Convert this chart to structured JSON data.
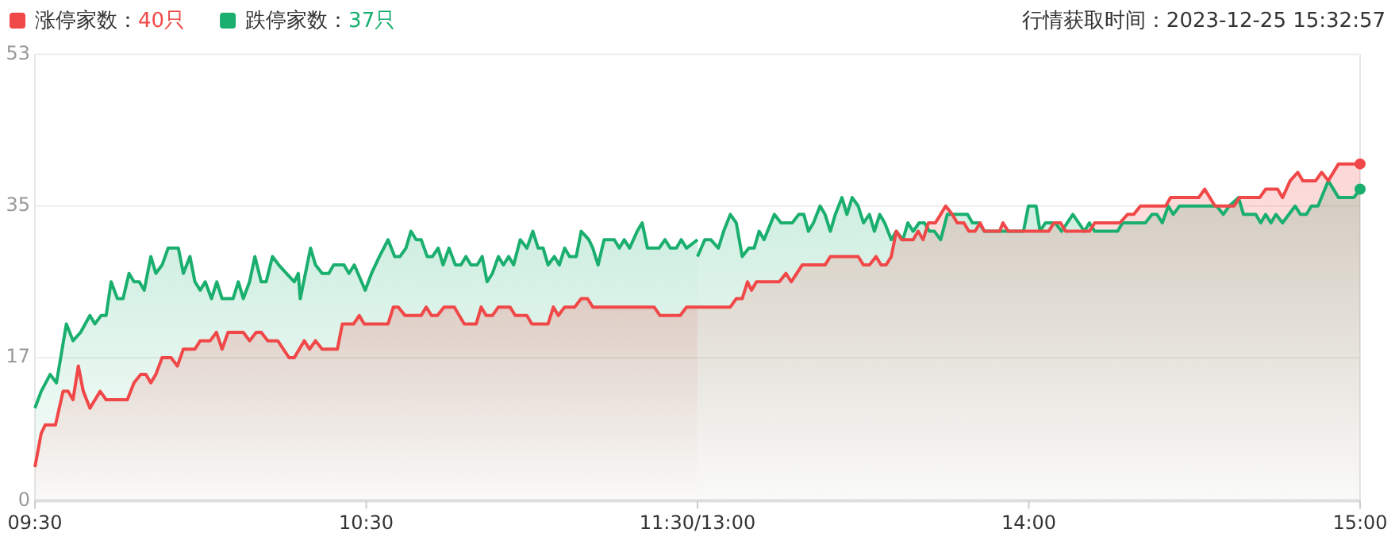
{
  "chart_data": [
    {
      "type": "area",
      "annotations": [
        "行情获取时间：2023-12-25 15:32:57",
        "40只",
        "37只"
      ],
      "xlim": [
        9.5,
        11.5
      ],
      "xticks": [
        {
          "value": 9.5,
          "label": "09:30"
        },
        {
          "value": 10.5,
          "label": "10:30"
        }
      ],
      "ylim": [
        0,
        53
      ],
      "yticks": [
        0,
        17,
        35,
        53
      ],
      "grid": "y",
      "legend": "top left",
      "series": [
        {
          "name": "涨停家数：",
          "color": "#f04848",
          "x": [
            9.5,
            9.519,
            9.531,
            9.562,
            9.585,
            9.6,
            9.615,
            9.631,
            9.646,
            9.666,
            9.697,
            9.715,
            9.779,
            9.799,
            9.819,
            9.835,
            9.85,
            9.865,
            9.884,
            9.911,
            9.93,
            9.948,
            9.983,
            9.999,
            10.029,
            10.048,
            10.065,
            10.083,
            10.129,
            10.148,
            10.168,
            10.183,
            10.203,
            10.233,
            10.267,
            10.283,
            10.313,
            10.329,
            10.347,
            10.367,
            10.413,
            10.428,
            10.462,
            10.479,
            10.494,
            10.566,
            10.582,
            10.597,
            10.617,
            10.666,
            10.681,
            10.697,
            10.715,
            10.735,
            10.766,
            10.796,
            10.832,
            10.847,
            10.862,
            10.881,
            10.899,
            10.934,
            10.95,
            10.985,
            11,
            11.049,
            11.065,
            11.08,
            11.099,
            11.129,
            11.149,
            11.168,
            11.184,
            11.369,
            11.387,
            11.448,
            11.467,
            11.5
          ],
          "values": [
            4,
            8,
            9,
            9,
            13,
            13,
            12,
            16,
            13,
            11,
            13,
            12,
            12,
            14,
            15,
            15,
            14,
            15,
            17,
            17,
            16,
            18,
            18,
            19,
            19,
            20,
            18,
            20,
            20,
            19,
            20,
            20,
            19,
            19,
            17,
            17,
            19,
            18,
            19,
            18,
            18,
            21,
            21,
            22,
            21,
            21,
            23,
            23,
            22,
            22,
            23,
            22,
            22,
            23,
            23,
            21,
            21,
            23,
            22,
            22,
            23,
            23,
            22,
            22,
            21,
            21,
            23,
            22,
            23,
            23,
            24,
            24,
            23,
            23,
            22,
            22,
            23,
            23
          ]
        },
        {
          "name": "跌停家数：",
          "color": "#1aaf6e",
          "x": [
            9.5,
            9.519,
            9.546,
            9.565,
            9.595,
            9.615,
            9.638,
            9.666,
            9.681,
            9.7,
            9.715,
            9.73,
            9.749,
            9.766,
            9.784,
            9.799,
            9.815,
            9.83,
            9.85,
            9.865,
            9.884,
            9.902,
            9.933,
            9.948,
            9.968,
            9.983,
            9.999,
            10.014,
            10.033,
            10.049,
            10.065,
            10.098,
            10.114,
            10.129,
            10.148,
            10.164,
            10.183,
            10.198,
            10.217,
            10.236,
            10.259,
            10.283,
            10.295,
            10.301,
            10.332,
            10.347,
            10.367,
            10.387,
            10.402,
            10.433,
            10.448,
            10.464,
            10.497,
            10.516,
            10.54,
            10.566,
            10.586,
            10.602,
            10.62,
            10.635,
            10.651,
            10.666,
            10.684,
            10.7,
            10.717,
            10.732,
            10.75,
            10.769,
            10.786,
            10.801,
            10.816,
            10.835,
            10.85,
            10.865,
            10.881,
            10.899,
            10.914,
            10.93,
            10.945,
            10.965,
            10.985,
            11.003,
            11.019,
            11.034,
            11.049,
            11.068,
            11.083,
            11.099,
            11.114,
            11.134,
            11.149,
            11.172,
            11.184,
            11.2,
            11.218,
            11.249,
            11.264,
            11.279,
            11.295,
            11.318,
            11.333,
            11.349,
            11.384,
            11.402,
            11.418,
            11.436,
            11.451,
            11.467,
            11.5
          ],
          "values": [
            11,
            13,
            15,
            14,
            21,
            19,
            20,
            22,
            21,
            22,
            22,
            26,
            24,
            24,
            27,
            26,
            26,
            25,
            29,
            27,
            28,
            30,
            30,
            27,
            29,
            26,
            25,
            26,
            24,
            26,
            24,
            24,
            26,
            24,
            26,
            29,
            26,
            26,
            29,
            28,
            27,
            26,
            27,
            24,
            30,
            28,
            27,
            27,
            28,
            28,
            27,
            28,
            25,
            27,
            29,
            31,
            29,
            29,
            30,
            32,
            31,
            31,
            29,
            29,
            30,
            28,
            30,
            28,
            28,
            29,
            28,
            28,
            29,
            26,
            27,
            29,
            28,
            29,
            28,
            31,
            30,
            32,
            30,
            30,
            28,
            29,
            28,
            30,
            29,
            29,
            32,
            31,
            30,
            28,
            31,
            31,
            30,
            31,
            30,
            32,
            33,
            30,
            30,
            31,
            30,
            30,
            31,
            30,
            31
          ]
        }
      ]
    },
    {
      "type": "area",
      "xlim": [
        13,
        15
      ],
      "xticks": [
        {
          "value": 13,
          "label": "11:30/13:00"
        },
        {
          "value": 14,
          "label": "14:00"
        },
        {
          "value": 15,
          "label": "15:00"
        }
      ],
      "ylim": [
        0,
        53
      ],
      "yticks": [
        0,
        17,
        35,
        53
      ],
      "grid": "y",
      "tick_labels": "x",
      "series": [
        {
          "color": "#f04848",
          "x": [
            13,
            13.099,
            13.117,
            13.135,
            13.151,
            13.163,
            13.178,
            13.247,
            13.267,
            13.283,
            13.316,
            13.385,
            13.401,
            13.485,
            13.501,
            13.519,
            13.539,
            13.554,
            13.569,
            13.585,
            13.6,
            13.616,
            13.651,
            13.666,
            13.681,
            13.697,
            13.718,
            13.734,
            13.749,
            13.769,
            13.784,
            13.804,
            13.819,
            13.838,
            13.853,
            13.866,
            13.912,
            13.922,
            13.938,
            14.06,
            14.076,
            14.096,
            14.111,
            14.183,
            14.199,
            14.275,
            14.298,
            14.317,
            14.337,
            14.413,
            14.428,
            14.513,
            14.531,
            14.562,
            14.62,
            14.636,
            14.697,
            14.715,
            14.751,
            14.766,
            14.789,
            14.812,
            14.827,
            14.866,
            14.884,
            14.904,
            14.935,
            15
          ],
          "values": [
            23,
            23,
            24,
            24,
            26,
            25,
            26,
            26,
            27,
            26,
            28,
            28,
            29,
            29,
            28,
            28,
            29,
            28,
            28,
            29,
            32,
            31,
            31,
            32,
            31,
            33,
            33,
            34,
            35,
            34,
            33,
            33,
            32,
            32,
            33,
            32,
            32,
            33,
            32,
            32,
            33,
            33,
            32,
            32,
            33,
            33,
            34,
            34,
            35,
            35,
            36,
            36,
            37,
            35,
            35,
            36,
            36,
            37,
            37,
            36,
            38,
            39,
            38,
            38,
            39,
            38,
            40,
            40
          ]
        },
        {
          "color": "#1aaf6e",
          "x": [
            13,
            13.022,
            13.04,
            13.063,
            13.079,
            13.099,
            13.117,
            13.135,
            13.155,
            13.171,
            13.186,
            13.201,
            13.232,
            13.252,
            13.286,
            13.306,
            13.321,
            13.335,
            13.35,
            13.37,
            13.385,
            13.401,
            13.416,
            13.436,
            13.451,
            13.467,
            13.485,
            13.501,
            13.519,
            13.534,
            13.55,
            13.565,
            13.585,
            13.6,
            13.62,
            13.635,
            13.651,
            13.669,
            13.685,
            13.7,
            13.715,
            13.734,
            13.754,
            13.815,
            13.83,
            13.85,
            13.866,
            13.984,
            13.999,
            14.022,
            14.034,
            14.05,
            14.08,
            14.099,
            14.133,
            14.168,
            14.183,
            14.199,
            14.268,
            14.283,
            14.352,
            14.372,
            14.387,
            14.403,
            14.421,
            14.436,
            14.455,
            14.567,
            14.587,
            14.605,
            14.633,
            14.648,
            14.685,
            14.7,
            14.715,
            14.731,
            14.746,
            14.766,
            14.804,
            14.82,
            14.838,
            14.853,
            14.873,
            14.904,
            14.935,
            14.981,
            15
          ],
          "values": [
            29,
            31,
            31,
            30,
            32,
            34,
            33,
            29,
            30,
            30,
            32,
            31,
            34,
            33,
            33,
            34,
            34,
            32,
            33,
            35,
            34,
            32,
            34,
            36,
            34,
            36,
            35,
            33,
            34,
            32,
            34,
            33,
            31,
            32,
            31,
            33,
            32,
            33,
            33,
            32,
            32,
            31,
            34,
            34,
            33,
            33,
            32,
            32,
            35,
            35,
            32,
            33,
            33,
            32,
            34,
            32,
            33,
            32,
            32,
            33,
            33,
            34,
            34,
            33,
            35,
            34,
            35,
            35,
            34,
            35,
            36,
            34,
            34,
            33,
            34,
            33,
            34,
            33,
            35,
            34,
            34,
            35,
            35,
            38,
            36,
            36,
            37
          ]
        }
      ]
    }
  ]
}
